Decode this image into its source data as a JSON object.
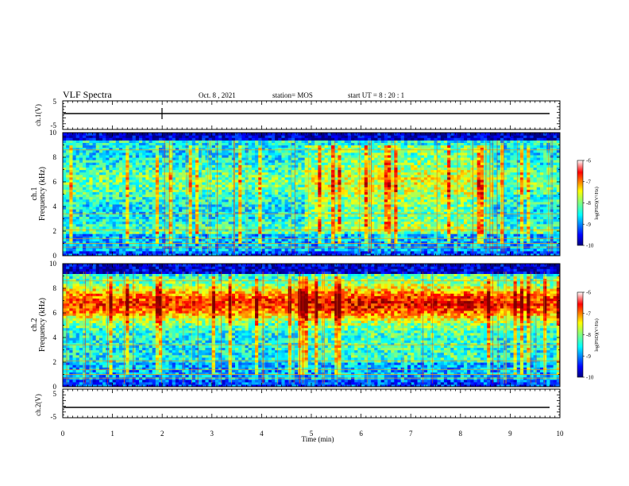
{
  "header": {
    "title": "VLF Spectra",
    "date": "Oct. 8  , 2021",
    "station": "station= MOS",
    "start": "start  UT =   8 : 20 : 1"
  },
  "chart_data": [
    {
      "type": "line",
      "id": "ch1-waveform",
      "ylabel": "ch.1(V)",
      "ylim": [
        -5,
        5
      ],
      "y_ticks": [
        "5",
        "-5"
      ],
      "xlim": [
        0,
        10
      ],
      "series": [
        {
          "x": [
            0,
            10
          ],
          "values": [
            0,
            0
          ]
        }
      ]
    },
    {
      "type": "heatmap",
      "id": "ch1-spectrogram",
      "ylabel": "ch.1\nFrequency (kHz)",
      "ylim": [
        0,
        10
      ],
      "y_ticks": [
        "0",
        "2",
        "4",
        "6",
        "8",
        "10"
      ],
      "xlim": [
        0,
        10
      ],
      "colorbar": {
        "label": "log(PSD)(V²/Hz)",
        "range": [
          -10,
          -6
        ],
        "ticks": [
          "-6",
          "-7",
          "-8",
          "-9",
          "-10"
        ]
      },
      "segments_min": [
        0,
        4.9,
        8.65,
        9.85
      ]
    },
    {
      "type": "heatmap",
      "id": "ch2-spectrogram",
      "ylabel": "ch.2\nFrequency (kHz)",
      "ylim": [
        0,
        10
      ],
      "y_ticks": [
        "0",
        "2",
        "4",
        "6",
        "8",
        "10"
      ],
      "xlim": [
        0,
        10
      ],
      "colorbar": {
        "label": "log(PSD)(V²/Hz)",
        "range": [
          -10,
          -6
        ],
        "ticks": [
          "-6",
          "-7",
          "-8",
          "-9",
          "-10"
        ]
      },
      "segments_min": [
        0,
        4.9,
        8.65,
        9.85
      ]
    },
    {
      "type": "line",
      "id": "ch2-waveform",
      "ylabel": "ch.2(V)",
      "ylim": [
        -5,
        5
      ],
      "y_ticks": [
        "5",
        "-5"
      ],
      "xlim": [
        0,
        10
      ],
      "xlabel": "Time  (min)",
      "x_ticks": [
        "0",
        "1",
        "2",
        "3",
        "4",
        "5",
        "6",
        "7",
        "8",
        "9",
        "10"
      ],
      "series": [
        {
          "x": [
            0,
            10
          ],
          "values": [
            0,
            0
          ]
        }
      ]
    }
  ],
  "colors": {
    "jet": [
      "#00007f",
      "#0000ff",
      "#0080ff",
      "#00ffff",
      "#80ff80",
      "#ffff00",
      "#ff8000",
      "#ff0000",
      "#7f0000"
    ]
  }
}
